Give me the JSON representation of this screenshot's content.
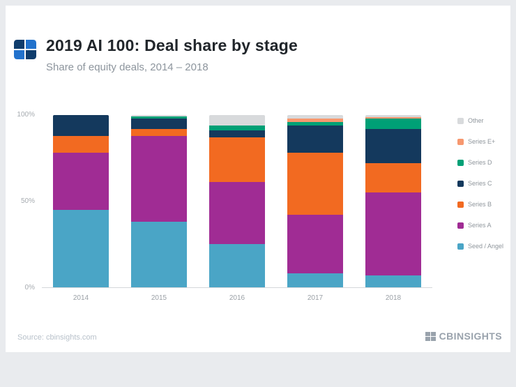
{
  "header": {
    "title": "2019 AI 100: Deal share by stage",
    "subtitle": "Share of equity deals, 2014 – 2018"
  },
  "footer": {
    "source": "Source: cbinsights.com",
    "brand": "CBINSIGHTS"
  },
  "chart_data": {
    "type": "bar",
    "subtype": "stacked-100-percent",
    "title": "2019 AI 100: Deal share by stage",
    "subtitle": "Share of equity deals, 2014 – 2018",
    "categories": [
      "2014",
      "2015",
      "2016",
      "2017",
      "2018"
    ],
    "xlabel": "",
    "ylabel": "Share of equity deals",
    "ylim": [
      0,
      100
    ],
    "grid": false,
    "legend_position": "right",
    "yticks": [
      {
        "label": "100%",
        "value": 100
      },
      {
        "label": "50%",
        "value": 50
      },
      {
        "label": "0%",
        "value": 0
      }
    ],
    "series": [
      {
        "name": "Seed / Angel",
        "color": "#4aa5c6",
        "values": [
          45,
          38,
          25,
          8,
          7
        ]
      },
      {
        "name": "Series A",
        "color": "#a02c94",
        "values": [
          33,
          50,
          36,
          34,
          48
        ]
      },
      {
        "name": "Series B",
        "color": "#f26a21",
        "values": [
          10,
          4,
          26,
          36,
          17
        ]
      },
      {
        "name": "Series C",
        "color": "#14395d",
        "values": [
          12,
          6,
          4,
          16,
          20
        ]
      },
      {
        "name": "Series D",
        "color": "#00a076",
        "values": [
          0,
          1,
          3,
          2,
          6
        ]
      },
      {
        "name": "Series E+",
        "color": "#f7986f",
        "values": [
          0,
          0,
          0,
          2,
          1
        ]
      },
      {
        "name": "Other",
        "color": "#d8dadc",
        "values": [
          0,
          1,
          6,
          2,
          1
        ]
      }
    ],
    "legend_order_top_to_bottom": [
      "Other",
      "Series E+",
      "Series D",
      "Series C",
      "Series B",
      "Series A",
      "Seed / Angel"
    ]
  }
}
